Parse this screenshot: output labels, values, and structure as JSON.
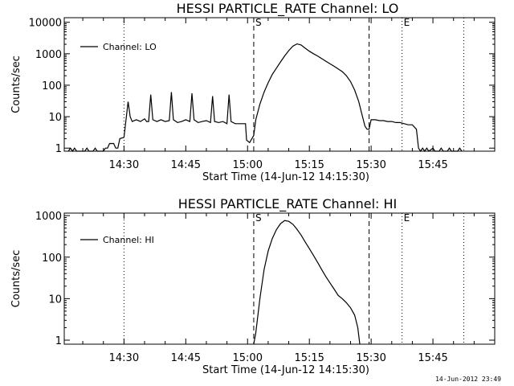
{
  "figure": {
    "footer_timestamp": "14-Jun-2012 23:49"
  },
  "chart_data": [
    {
      "type": "line",
      "title": "HESSI PARTICLE_RATE Channel: LO",
      "xlabel": "Start Time (14-Jun-12 14:15:30)",
      "ylabel": "Counts/sec",
      "y_scale": "log",
      "xlim": [
        "14:15:30",
        "16:00:00"
      ],
      "ylim": [
        0.8,
        14000
      ],
      "x_ticks": [
        "14:30",
        "14:45",
        "15:00",
        "15:15",
        "15:30",
        "15:45"
      ],
      "y_ticks": [
        "1",
        "10",
        "100",
        "1000",
        "10000"
      ],
      "legend": {
        "position": "top-left",
        "entries": [
          "Channel: LO"
        ]
      },
      "markers": [
        {
          "label": "",
          "time": "14:30:00",
          "style": "dotted"
        },
        {
          "label": "S",
          "time": "15:01:30",
          "style": "dashed"
        },
        {
          "label": "",
          "time": "15:29:30",
          "style": "dashed"
        },
        {
          "label": "E",
          "time": "15:37:30",
          "style": "dotted"
        },
        {
          "label": "",
          "time": "15:52:30",
          "style": "dotted"
        }
      ],
      "series": [
        {
          "name": "Channel: LO",
          "points": [
            [
              "14:16:30",
              0.8
            ],
            [
              "14:17:00",
              1.0
            ],
            [
              "14:17:30",
              0.8
            ],
            [
              "14:18:00",
              1.0
            ],
            [
              "14:18:30",
              0.8
            ],
            [
              "14:20:30",
              0.8
            ],
            [
              "14:21:00",
              1.0
            ],
            [
              "14:21:30",
              0.8
            ],
            [
              "14:22:30",
              0.8
            ],
            [
              "14:23:00",
              1.0
            ],
            [
              "14:23:30",
              0.8
            ],
            [
              "14:25:00",
              0.8
            ],
            [
              "14:25:30",
              1.0
            ],
            [
              "14:26:00",
              1.0
            ],
            [
              "14:26:30",
              1.4
            ],
            [
              "14:27:30",
              1.4
            ],
            [
              "14:28:00",
              1.0
            ],
            [
              "14:28:30",
              1.0
            ],
            [
              "14:29:00",
              2.0
            ],
            [
              "14:30:00",
              2.2
            ],
            [
              "14:30:30",
              8.0
            ],
            [
              "14:31:00",
              30
            ],
            [
              "14:31:30",
              10
            ],
            [
              "14:32:00",
              7.0
            ],
            [
              "14:33:00",
              8.0
            ],
            [
              "14:34:00",
              7.0
            ],
            [
              "14:35:00",
              8.5
            ],
            [
              "14:35:30",
              7.0
            ],
            [
              "14:36:00",
              7.0
            ],
            [
              "14:36:30",
              50
            ],
            [
              "14:37:00",
              8.0
            ],
            [
              "14:38:00",
              7.0
            ],
            [
              "14:39:00",
              8.0
            ],
            [
              "14:40:00",
              7.0
            ],
            [
              "14:41:00",
              7.5
            ],
            [
              "14:41:30",
              60
            ],
            [
              "14:42:00",
              8.0
            ],
            [
              "14:43:00",
              6.5
            ],
            [
              "14:44:00",
              7.0
            ],
            [
              "14:45:00",
              8.0
            ],
            [
              "14:46:00",
              7.0
            ],
            [
              "14:46:30",
              55
            ],
            [
              "14:47:00",
              8.0
            ],
            [
              "14:48:00",
              6.5
            ],
            [
              "14:49:00",
              7.0
            ],
            [
              "14:50:00",
              7.5
            ],
            [
              "14:51:00",
              6.5
            ],
            [
              "14:51:30",
              45
            ],
            [
              "14:52:00",
              7.0
            ],
            [
              "14:53:00",
              6.5
            ],
            [
              "14:54:00",
              7.0
            ],
            [
              "14:55:00",
              6.0
            ],
            [
              "14:55:30",
              50
            ],
            [
              "14:56:00",
              7.0
            ],
            [
              "14:57:00",
              6.0
            ],
            [
              "14:58:00",
              6.0
            ],
            [
              "14:59:00",
              6.0
            ],
            [
              "14:59:30",
              6.0
            ],
            [
              "14:59:45",
              1.8
            ],
            [
              "15:00:30",
              1.5
            ],
            [
              "15:01:30",
              2.5
            ],
            [
              "15:02:00",
              8.0
            ],
            [
              "15:03:00",
              25
            ],
            [
              "15:04:00",
              60
            ],
            [
              "15:05:00",
              120
            ],
            [
              "15:06:00",
              220
            ],
            [
              "15:07:00",
              350
            ],
            [
              "15:08:00",
              550
            ],
            [
              "15:09:00",
              850
            ],
            [
              "15:10:00",
              1250
            ],
            [
              "15:11:00",
              1750
            ],
            [
              "15:12:00",
              2050
            ],
            [
              "15:13:00",
              1900
            ],
            [
              "15:14:00",
              1500
            ],
            [
              "15:15:00",
              1200
            ],
            [
              "15:16:00",
              1000
            ],
            [
              "15:17:00",
              850
            ],
            [
              "15:18:00",
              700
            ],
            [
              "15:19:00",
              580
            ],
            [
              "15:20:00",
              480
            ],
            [
              "15:21:00",
              400
            ],
            [
              "15:22:00",
              330
            ],
            [
              "15:23:00",
              270
            ],
            [
              "15:24:00",
              200
            ],
            [
              "15:25:00",
              130
            ],
            [
              "15:26:00",
              70
            ],
            [
              "15:27:00",
              30
            ],
            [
              "15:27:45",
              12
            ],
            [
              "15:28:30",
              5
            ],
            [
              "15:29:00",
              4
            ],
            [
              "15:29:30",
              4
            ],
            [
              "15:30:00",
              8
            ],
            [
              "15:31:00",
              8
            ],
            [
              "15:32:00",
              7.5
            ],
            [
              "15:33:00",
              7.5
            ],
            [
              "15:34:00",
              7.0
            ],
            [
              "15:35:00",
              7.0
            ],
            [
              "15:36:00",
              6.5
            ],
            [
              "15:37:00",
              6.5
            ],
            [
              "15:38:00",
              6.0
            ],
            [
              "15:39:00",
              5.5
            ],
            [
              "15:40:00",
              5.5
            ],
            [
              "15:41:00",
              4.0
            ],
            [
              "15:41:30",
              1.0
            ],
            [
              "15:42:00",
              0.8
            ],
            [
              "15:42:30",
              1.0
            ],
            [
              "15:43:00",
              0.8
            ],
            [
              "15:43:30",
              1.0
            ],
            [
              "15:44:00",
              0.8
            ],
            [
              "15:45:00",
              1.0
            ],
            [
              "15:45:30",
              0.8
            ],
            [
              "15:46:30",
              0.8
            ],
            [
              "15:47:00",
              1.0
            ],
            [
              "15:47:30",
              0.8
            ],
            [
              "15:48:30",
              0.8
            ],
            [
              "15:49:00",
              1.0
            ],
            [
              "15:49:30",
              0.8
            ],
            [
              "15:51:00",
              0.8
            ],
            [
              "15:51:30",
              1.0
            ],
            [
              "15:52:00",
              0.8
            ]
          ]
        }
      ]
    },
    {
      "type": "line",
      "title": "HESSI PARTICLE_RATE Channel: HI",
      "xlabel": "Start Time (14-Jun-12 14:15:30)",
      "ylabel": "Counts/sec",
      "y_scale": "log",
      "xlim": [
        "14:15:30",
        "16:00:00"
      ],
      "ylim": [
        0.8,
        1150
      ],
      "x_ticks": [
        "14:30",
        "14:45",
        "15:00",
        "15:15",
        "15:30",
        "15:45"
      ],
      "y_ticks": [
        "1",
        "10",
        "100",
        "1000"
      ],
      "legend": {
        "position": "top-left",
        "entries": [
          "Channel: HI"
        ]
      },
      "markers": [
        {
          "label": "",
          "time": "14:30:00",
          "style": "dotted"
        },
        {
          "label": "S",
          "time": "15:01:30",
          "style": "dashed"
        },
        {
          "label": "",
          "time": "15:29:30",
          "style": "dashed"
        },
        {
          "label": "E",
          "time": "15:37:30",
          "style": "dotted"
        },
        {
          "label": "",
          "time": "15:52:30",
          "style": "dotted"
        }
      ],
      "series": [
        {
          "name": "Channel: HI",
          "points": [
            [
              "15:01:30",
              0.8
            ],
            [
              "15:02:00",
              1.5
            ],
            [
              "15:03:00",
              10
            ],
            [
              "15:04:00",
              50
            ],
            [
              "15:05:00",
              140
            ],
            [
              "15:06:00",
              280
            ],
            [
              "15:07:00",
              460
            ],
            [
              "15:08:00",
              640
            ],
            [
              "15:09:00",
              760
            ],
            [
              "15:10:00",
              730
            ],
            [
              "15:11:00",
              620
            ],
            [
              "15:12:00",
              470
            ],
            [
              "15:13:00",
              340
            ],
            [
              "15:14:00",
              230
            ],
            [
              "15:15:00",
              160
            ],
            [
              "15:16:00",
              110
            ],
            [
              "15:17:00",
              75
            ],
            [
              "15:18:00",
              50
            ],
            [
              "15:19:00",
              34
            ],
            [
              "15:20:00",
              24
            ],
            [
              "15:21:00",
              17
            ],
            [
              "15:22:00",
              12
            ],
            [
              "15:23:00",
              10
            ],
            [
              "15:24:00",
              8
            ],
            [
              "15:25:00",
              6
            ],
            [
              "15:26:00",
              4
            ],
            [
              "15:26:45",
              2
            ],
            [
              "15:27:15",
              0.8
            ]
          ]
        }
      ]
    }
  ]
}
